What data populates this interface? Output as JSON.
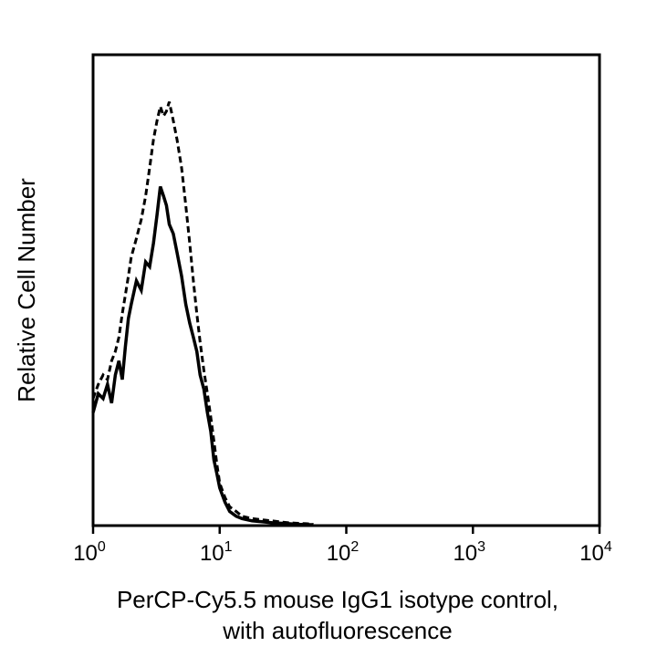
{
  "chart_data": {
    "type": "line",
    "title": "",
    "xlabel_line1": "PerCP-Cy5.5 mouse IgG1 isotype control,",
    "xlabel_line2": "with autofluorescence",
    "ylabel": "Relative Cell Number",
    "xscale": "log",
    "xlim": [
      1,
      10000
    ],
    "ylim": [
      0,
      100
    ],
    "grid": false,
    "x_ticks": [
      {
        "base": "10",
        "exp": "0",
        "value": 1
      },
      {
        "base": "10",
        "exp": "1",
        "value": 10
      },
      {
        "base": "10",
        "exp": "2",
        "value": 100
      },
      {
        "base": "10",
        "exp": "3",
        "value": 1000
      },
      {
        "base": "10",
        "exp": "4",
        "value": 10000
      }
    ],
    "series": [
      {
        "name": "isotype control",
        "style": "solid",
        "x": [
          1.0,
          1.1,
          1.2,
          1.3,
          1.4,
          1.5,
          1.6,
          1.7,
          1.8,
          1.9,
          2.0,
          2.2,
          2.4,
          2.6,
          2.8,
          3.0,
          3.2,
          3.4,
          3.6,
          3.8,
          4.0,
          4.3,
          4.6,
          5.0,
          5.4,
          5.8,
          6.2,
          6.6,
          7.0,
          7.5,
          8.0,
          8.5,
          9.0,
          9.5,
          10.0,
          11.0,
          12.0,
          13.5,
          15.0,
          18.0,
          22.0,
          26.0,
          30.0,
          35.0,
          40.0,
          48.0,
          55.0
        ],
        "y": [
          24,
          28,
          27,
          30,
          26,
          32,
          35,
          31,
          38,
          44,
          47,
          52,
          50,
          56,
          55,
          60,
          66,
          72,
          70,
          68,
          64,
          62,
          58,
          53,
          47,
          43,
          40,
          37,
          32,
          29,
          24,
          20,
          14,
          11,
          8,
          5,
          3,
          2,
          1.5,
          1,
          0.8,
          0.6,
          0.5,
          0.4,
          0.3,
          0.2,
          0.2
        ]
      },
      {
        "name": "autofluorescence",
        "style": "dashed",
        "x": [
          1.0,
          1.1,
          1.2,
          1.3,
          1.4,
          1.5,
          1.6,
          1.7,
          1.8,
          1.9,
          2.0,
          2.2,
          2.4,
          2.6,
          2.8,
          3.0,
          3.2,
          3.4,
          3.6,
          3.8,
          4.0,
          4.3,
          4.6,
          5.0,
          5.4,
          5.8,
          6.2,
          6.6,
          7.0,
          7.5,
          8.0,
          8.5,
          9.0,
          9.5,
          10.0,
          11.0,
          12.0,
          13.5,
          15.0,
          18.0,
          22.0,
          26.0,
          30.0,
          35.0,
          40.0,
          48.0,
          55.0
        ],
        "y": [
          27,
          30,
          32,
          31,
          35,
          37,
          40,
          45,
          49,
          53,
          57,
          61,
          65,
          70,
          76,
          82,
          86,
          89,
          87,
          88,
          90,
          86,
          82,
          76,
          68,
          60,
          52,
          45,
          39,
          33,
          28,
          23,
          18,
          13,
          9,
          6,
          4,
          3,
          2,
          1.5,
          1.2,
          1,
          0.8,
          0.6,
          0.5,
          0.4,
          0.3
        ]
      }
    ]
  }
}
